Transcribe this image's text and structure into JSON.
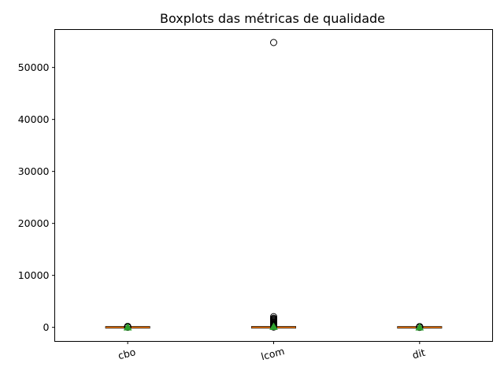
{
  "chart_data": {
    "type": "boxplot",
    "title": "Boxplots das métricas de qualidade",
    "xlabel": "",
    "ylabel": "",
    "ylim": [
      -2700,
      57300
    ],
    "yticks": [
      0,
      10000,
      20000,
      30000,
      40000,
      50000
    ],
    "ytick_labels": [
      "0",
      "10000",
      "20000",
      "30000",
      "40000",
      "50000"
    ],
    "grid": false,
    "mean_marker_color": "#2ca02c",
    "median_color": "#ff7f0e",
    "boxes": [
      {
        "name": "cbo",
        "q1": 2,
        "median": 5,
        "q3": 10,
        "whisker_low": 0,
        "whisker_high": 22,
        "mean": 7,
        "outliers": [
          30,
          45,
          60,
          80,
          100,
          120,
          140,
          160,
          180
        ]
      },
      {
        "name": "lcom",
        "q1": 0,
        "median": 2,
        "q3": 20,
        "whisker_low": 0,
        "whisker_high": 50,
        "mean": 120,
        "outliers": [
          60,
          90,
          130,
          180,
          250,
          350,
          450,
          550,
          700,
          850,
          1000,
          1150,
          1300,
          1450,
          1600,
          1750,
          2050,
          54800
        ]
      },
      {
        "name": "dit",
        "q1": 1,
        "median": 1,
        "q3": 2,
        "whisker_low": 1,
        "whisker_high": 3,
        "mean": 2,
        "outliers": [
          5,
          8,
          12,
          20,
          40,
          60,
          90,
          120,
          150
        ]
      }
    ]
  }
}
